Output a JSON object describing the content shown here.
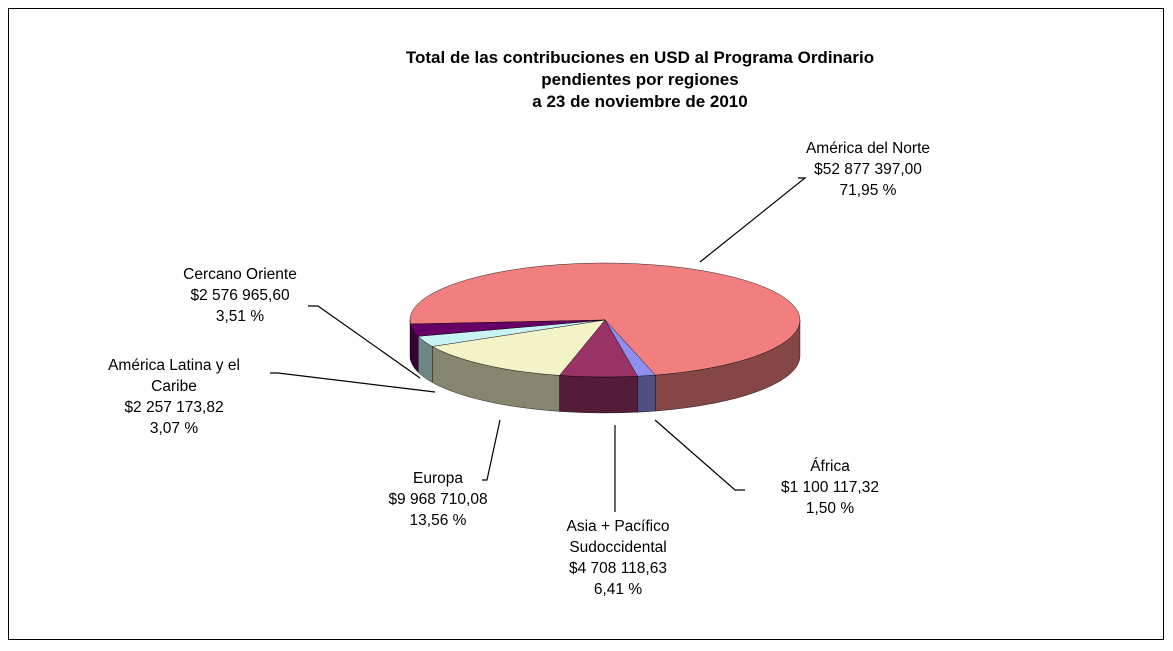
{
  "chart_data": {
    "type": "pie3d",
    "title": "Total de las contribuciones  en USD al Programa Ordinario\npendientes por regiones\na  23 de noviembre de 2010",
    "categories": [
      "América del Norte",
      "África",
      "Asia + Pacífico Sudoccidental",
      "Europa",
      "América Latina y el Caribe",
      "Cercano Oriente"
    ],
    "values": [
      52877397.0,
      1100117.32,
      4708118.63,
      9968710.08,
      2257173.82,
      2576965.6
    ],
    "value_labels": [
      "$52 877 397,00",
      "$1 100 117,32",
      "$4 708 118,63",
      "$9 968 710,08",
      "$2 257 173,82",
      "$2 576 965,60"
    ],
    "percentages": [
      71.95,
      1.5,
      6.41,
      13.56,
      3.07,
      3.51
    ],
    "percentage_labels": [
      "71,95 %",
      "1,50 %",
      "6,41 %",
      "13,56 %",
      "3,07 %",
      "3,51 %"
    ],
    "colors": [
      "#f27f7f",
      "#8f8fef",
      "#993366",
      "#f3f3c8",
      "#c8f3f3",
      "#660066"
    ]
  }
}
